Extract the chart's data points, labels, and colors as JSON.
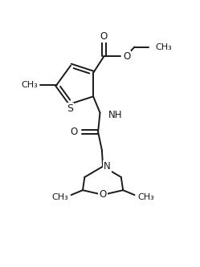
{
  "background_color": "#ffffff",
  "line_color": "#1a1a1a",
  "line_width": 1.4,
  "font_size": 8.5,
  "figsize": [
    2.49,
    3.33
  ],
  "dpi": 100,
  "xlim": [
    0,
    10
  ],
  "ylim": [
    0,
    13.3
  ]
}
